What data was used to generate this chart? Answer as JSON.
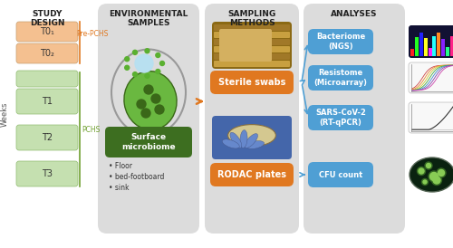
{
  "col_headers": [
    "STUDY\nDESIGN",
    "ENVIRONMENTAL\nSAMPLES",
    "SAMPLING\nMETHODS",
    "ANALYSES"
  ],
  "study_timepoints_peach": [
    "T0₁",
    "T0₂"
  ],
  "study_timepoints_green": [
    "T1",
    "T2",
    "T3"
  ],
  "pre_pchs_label": "Pre-PCHS",
  "pchs_label": "PCHS",
  "weeks_label": "Weeks",
  "surface_microbiome_label": "Surface\nmicrobiome",
  "surface_items": [
    "Floor",
    "bed-footboard",
    "sink"
  ],
  "sampling_methods": [
    "Sterile swabs",
    "RODAC plates"
  ],
  "analyses": [
    "Bacteriome\n(NGS)",
    "Resistome\n(Microarray)",
    "SARS-CoV-2\n(RT-qPCR)",
    "CFU count"
  ],
  "bg_color": "#ffffff",
  "panel_bg": "#dcdcdc",
  "orange_color": "#e07820",
  "blue_color": "#4f9fd4",
  "green_dark": "#3d6e20",
  "green_light": "#c5e0b0",
  "peach_color": "#f4c090",
  "header_color": "#222222",
  "orange_arrow": "#e07820",
  "blue_arrow": "#4f9fd4",
  "weeks_color": "#555555",
  "pchs_green": "#70a030",
  "pre_pchs_orange": "#e07820"
}
